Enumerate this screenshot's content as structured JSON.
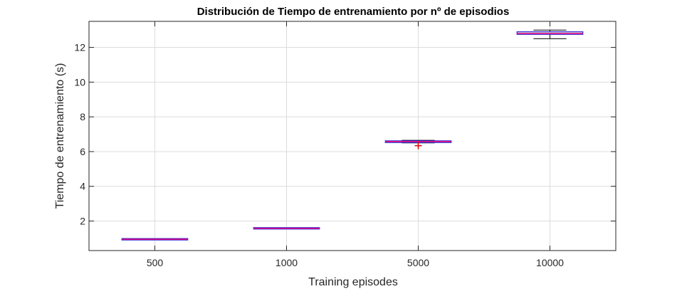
{
  "chart_data": {
    "type": "box",
    "title": "Distribución de Tiempo de entrenamiento por nº de episodios",
    "xlabel": "Training episodes",
    "ylabel": "Tiempo de entrenamiento (s)",
    "categories": [
      "500",
      "1000",
      "5000",
      "10000"
    ],
    "ylim": [
      0.3,
      13.5
    ],
    "yticks": [
      2,
      4,
      6,
      8,
      10,
      12
    ],
    "grid": true,
    "boxes": [
      {
        "category": "500",
        "min": 0.94,
        "q1": 0.94,
        "median": 0.95,
        "q3": 0.96,
        "max": 0.96,
        "outliers": []
      },
      {
        "category": "1000",
        "min": 1.56,
        "q1": 1.56,
        "median": 1.58,
        "q3": 1.6,
        "max": 1.61,
        "outliers": []
      },
      {
        "category": "5000",
        "min": 6.5,
        "q1": 6.52,
        "median": 6.58,
        "q3": 6.62,
        "max": 6.65,
        "outliers": [
          6.34
        ]
      },
      {
        "category": "10000",
        "min": 12.5,
        "q1": 12.75,
        "median": 12.8,
        "q3": 12.9,
        "max": 13.0,
        "outliers": []
      }
    ],
    "colors": {
      "box_fill": "#dcdcdc",
      "box_edge": "#2b2bd6",
      "median": "#e6007e",
      "outlier": "#e00000"
    }
  }
}
